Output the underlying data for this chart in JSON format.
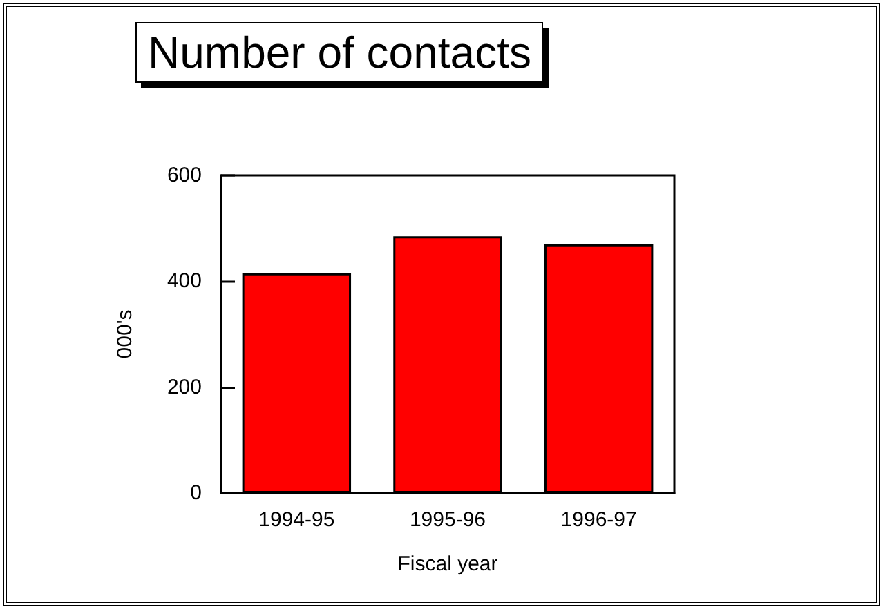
{
  "chart_data": {
    "type": "bar",
    "title": "Number of contacts",
    "xlabel": "Fiscal year",
    "ylabel": "000's",
    "categories": [
      "1994-95",
      "1995-96",
      "1996-97"
    ],
    "values": [
      415,
      485,
      470
    ],
    "color": "#ff0000",
    "ylim": [
      0,
      600
    ],
    "yticks": [
      0,
      200,
      400,
      600
    ],
    "grid": false
  }
}
